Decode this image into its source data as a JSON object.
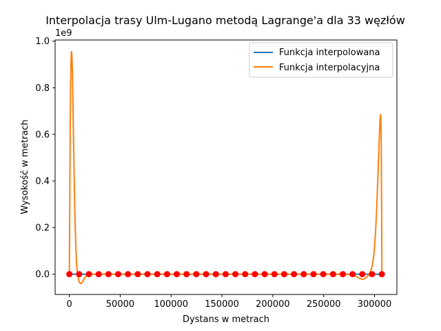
{
  "chart_data": {
    "type": "line",
    "title": "Interpolacja trasy Ulm-Lugano metodą Lagrange'a dla 33 węzłów",
    "xlabel": "Dystans w metrach",
    "ylabel": "Wysokość w metrach",
    "y_offset_text": "1e9",
    "xlim": [
      -14000,
      322000
    ],
    "ylim": [
      -0.087,
      1.005
    ],
    "x_ticks": [
      0,
      50000,
      100000,
      150000,
      200000,
      250000,
      300000
    ],
    "x_tick_labels": [
      "0",
      "50000",
      "100000",
      "150000",
      "200000",
      "250000",
      "300000"
    ],
    "y_ticks": [
      0.0,
      0.2,
      0.4,
      0.6,
      0.8,
      1.0
    ],
    "y_tick_labels": [
      "0.0",
      "0.2",
      "0.4",
      "0.6",
      "0.8",
      "1.0"
    ],
    "grid": false,
    "legend_position": "top-right",
    "colors": {
      "interpolated": "#1f77b4",
      "interpolating": "#ff7f0e",
      "nodes": "#ff0000",
      "axes": "#000000"
    },
    "series": [
      {
        "name": "Funkcja interpolowana",
        "kind": "line",
        "color": "#1f77b4",
        "x": [
          0,
          9600,
          19200,
          28800,
          38400,
          48000,
          57600,
          67200,
          76800,
          86400,
          96000,
          105600,
          115200,
          124800,
          134400,
          144000,
          153600,
          163200,
          172800,
          182400,
          192000,
          201600,
          211200,
          220800,
          230400,
          240000,
          249600,
          259200,
          268800,
          278400,
          288000,
          297600,
          307200
        ],
        "y": [
          0.0,
          0.0,
          0.0,
          0.0,
          0.0,
          0.0,
          0.0,
          0.0,
          0.0,
          0.0,
          0.0,
          0.0,
          0.0,
          0.0,
          0.0,
          0.0,
          0.0,
          0.0,
          0.0,
          0.0,
          0.0,
          0.0,
          0.0,
          0.0,
          0.0,
          0.0,
          0.0,
          0.0,
          0.0,
          0.0,
          0.0,
          0.0,
          0.0
        ]
      },
      {
        "name": "Funkcja interpolacyjna",
        "kind": "line",
        "color": "#ff7f0e",
        "x": [
          0,
          400,
          800,
          1200,
          1600,
          2000,
          2400,
          2800,
          3200,
          3600,
          4000,
          4800,
          5600,
          6400,
          7200,
          8000,
          8800,
          9600,
          10400,
          11200,
          12000,
          12800,
          13600,
          14400,
          15200,
          16000,
          17600,
          19200,
          22000,
          26000,
          32000,
          40000,
          60000,
          100000,
          150000,
          200000,
          250000,
          270000,
          278000,
          282000,
          285000,
          288000,
          290000,
          292000,
          294000,
          296000,
          298000,
          299500,
          301000,
          302000,
          303000,
          304000,
          304800,
          305400,
          305800,
          306200,
          306600,
          307000,
          307200
        ],
        "y": [
          0.0,
          0.32,
          0.6,
          0.8,
          0.91,
          0.955,
          0.945,
          0.9,
          0.82,
          0.72,
          0.6,
          0.4,
          0.23,
          0.11,
          0.035,
          0.002,
          -0.02,
          -0.032,
          -0.038,
          -0.04,
          -0.038,
          -0.033,
          -0.027,
          -0.021,
          -0.015,
          -0.01,
          -0.004,
          0.0,
          0.0,
          0.0,
          0.0,
          0.0,
          0.0,
          0.0,
          0.0,
          0.0,
          0.0,
          0.0,
          -0.002,
          -0.01,
          -0.018,
          -0.022,
          -0.02,
          -0.014,
          -0.005,
          0.01,
          0.04,
          0.09,
          0.18,
          0.27,
          0.38,
          0.5,
          0.6,
          0.66,
          0.685,
          0.67,
          0.55,
          0.25,
          0.0
        ]
      },
      {
        "name": "",
        "kind": "scatter",
        "color": "#ff0000",
        "x": [
          0,
          9600,
          19200,
          28800,
          38400,
          48000,
          57600,
          67200,
          76800,
          86400,
          96000,
          105600,
          115200,
          124800,
          134400,
          144000,
          153600,
          163200,
          172800,
          182400,
          192000,
          201600,
          211200,
          220800,
          230400,
          240000,
          249600,
          259200,
          268800,
          278400,
          288000,
          297600,
          307200
        ],
        "y": [
          0.0,
          0.0,
          0.0,
          0.0,
          0.0,
          0.0,
          0.0,
          0.0,
          0.0,
          0.0,
          0.0,
          0.0,
          0.0,
          0.0,
          0.0,
          0.0,
          0.0,
          0.0,
          0.0,
          0.0,
          0.0,
          0.0,
          0.0,
          0.0,
          0.0,
          0.0,
          0.0,
          0.0,
          0.0,
          0.0,
          0.0,
          0.0,
          0.0
        ]
      }
    ]
  }
}
